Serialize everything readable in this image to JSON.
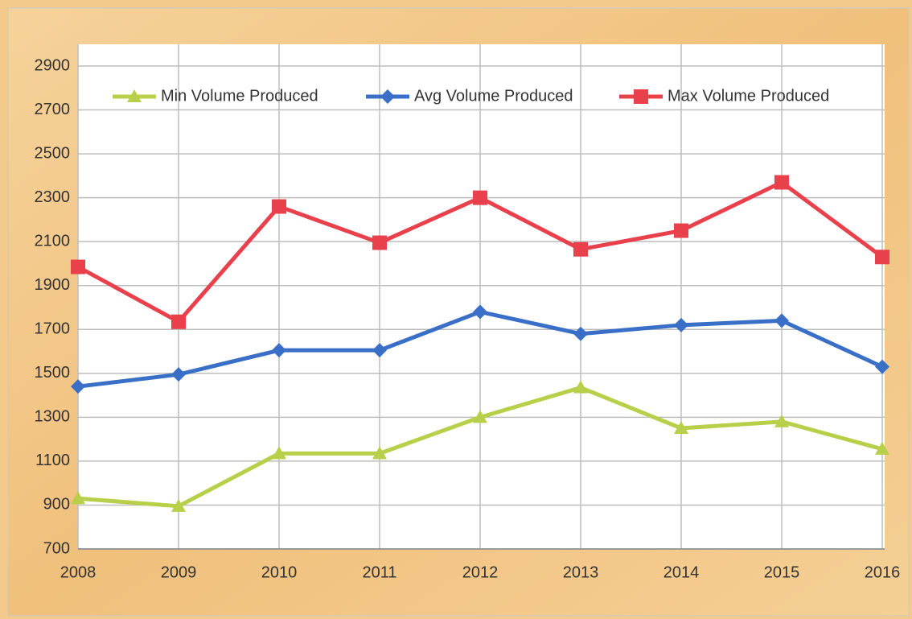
{
  "chart_data": {
    "type": "line",
    "categories": [
      "2008",
      "2009",
      "2010",
      "2011",
      "2012",
      "2013",
      "2014",
      "2015",
      "2016"
    ],
    "series": [
      {
        "name": "Min Volume Produced",
        "color": "#b8cf4a",
        "marker": "triangle",
        "values": [
          930,
          895,
          1135,
          1135,
          1300,
          1435,
          1250,
          1280,
          1155
        ]
      },
      {
        "name": "Avg Volume Produced",
        "color": "#3a6fc7",
        "marker": "diamond",
        "values": [
          1440,
          1495,
          1605,
          1605,
          1780,
          1680,
          1720,
          1740,
          1530
        ]
      },
      {
        "name": "Max Volume Produced",
        "color": "#e8414c",
        "marker": "square",
        "values": [
          1985,
          1735,
          2260,
          2095,
          2300,
          2065,
          2150,
          2370,
          2030
        ]
      }
    ],
    "ylim": [
      700,
      2900
    ],
    "yticks": [
      700,
      900,
      1100,
      1300,
      1500,
      1700,
      1900,
      2100,
      2300,
      2500,
      2700,
      2900
    ],
    "grid": true,
    "legend": "top"
  }
}
